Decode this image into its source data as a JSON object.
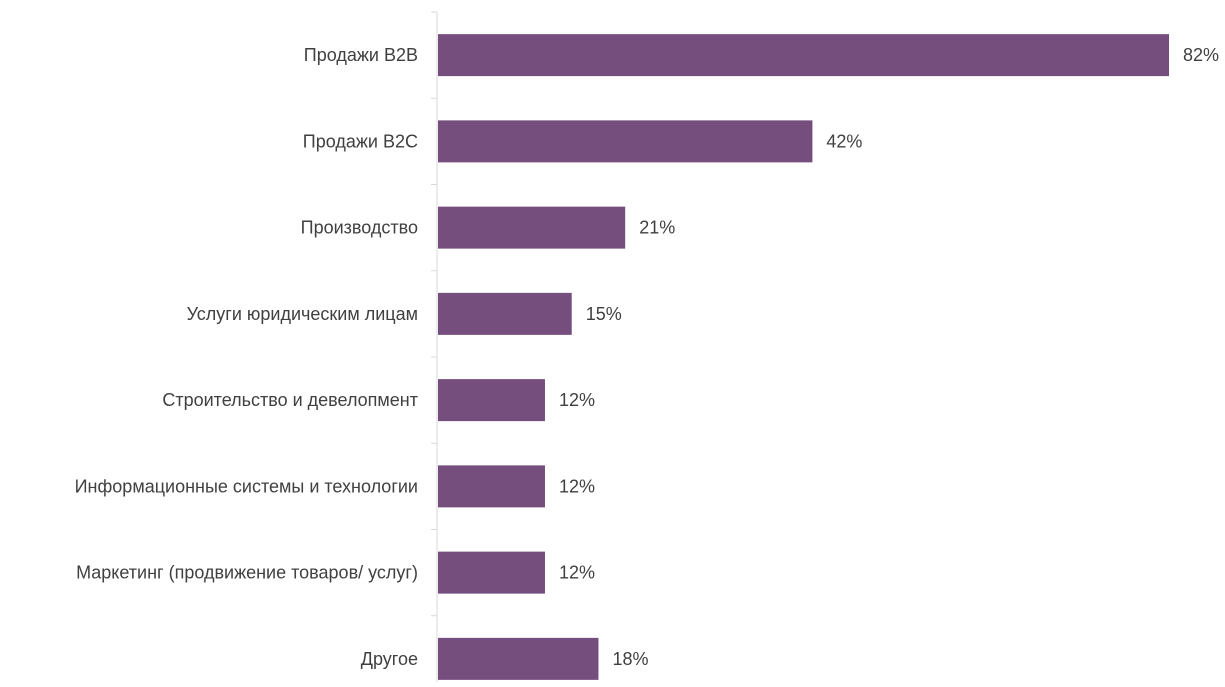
{
  "chart_data": {
    "type": "bar",
    "orientation": "horizontal",
    "categories": [
      "Продажи В2В",
      "Продажи В2С",
      "Производство",
      "Услуги юридическим лицам",
      "Строительство и девелопмент",
      "Информационные системы и технологии",
      "Маркетинг (продвижение товаров/ услуг)",
      "Другое"
    ],
    "values": [
      82,
      42,
      21,
      15,
      12,
      12,
      12,
      18
    ],
    "value_labels": [
      "82%",
      "42%",
      "21%",
      "15%",
      "12%",
      "12%",
      "12%",
      "18%"
    ],
    "unit": "%",
    "xlim": [
      0,
      82
    ],
    "grid": false,
    "legend": "none",
    "bar_color": "#764e7e",
    "axis_color": "#d9d9d9",
    "label_color": "#404040"
  }
}
